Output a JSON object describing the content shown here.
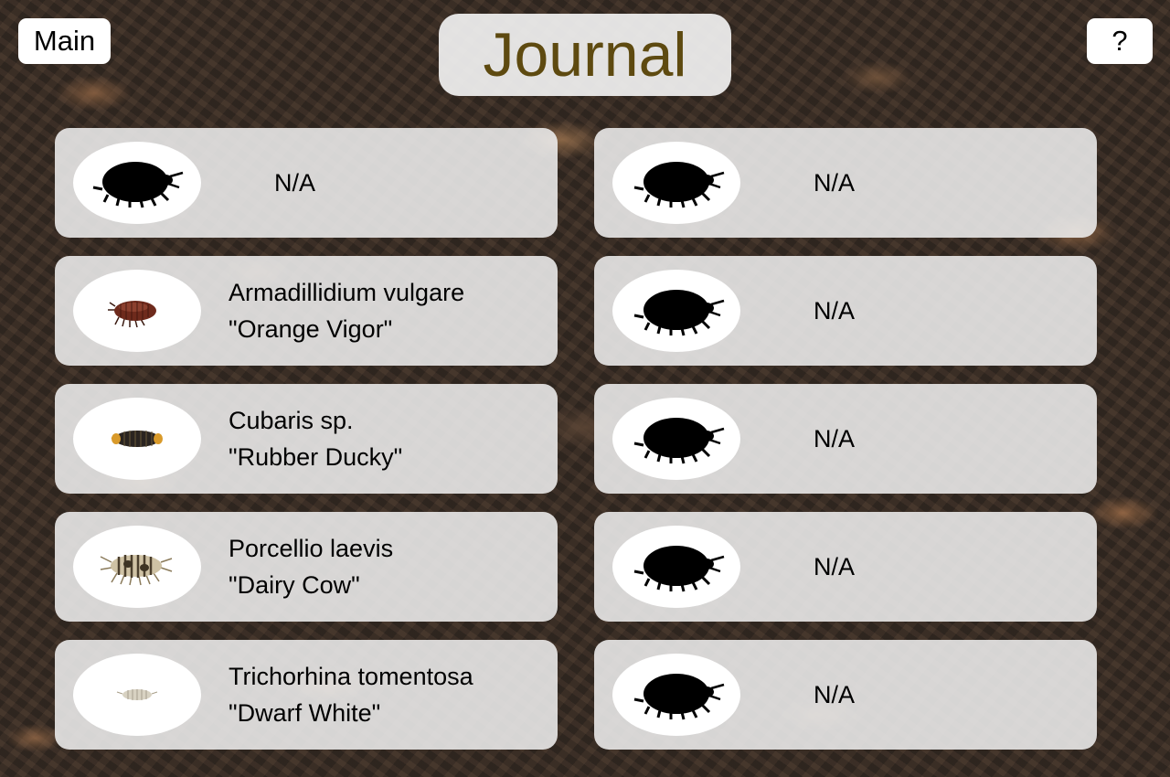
{
  "nav": {
    "main_label": "Main",
    "help_label": "?"
  },
  "header": {
    "title": "Journal",
    "title_color": "#5e4a10"
  },
  "entries": [
    {
      "column": "left",
      "discovered": false,
      "label": "N/A",
      "icon": "silhouette-icon"
    },
    {
      "column": "left",
      "discovered": true,
      "species": "Armadillidium vulgare",
      "morph": "\"Orange Vigor\"",
      "icon": "isopod-orange-vigor-icon",
      "color": "#6e2a1c"
    },
    {
      "column": "left",
      "discovered": true,
      "species": "Cubaris sp.",
      "morph": "\"Rubber Ducky\"",
      "icon": "isopod-rubber-ducky-icon",
      "color": "#2a2420"
    },
    {
      "column": "left",
      "discovered": true,
      "species": "Porcellio laevis",
      "morph": "\"Dairy Cow\"",
      "icon": "isopod-dairy-cow-icon",
      "color": "#b8a888"
    },
    {
      "column": "left",
      "discovered": true,
      "species": "Trichorhina tomentosa",
      "morph": "\"Dwarf White\"",
      "icon": "isopod-dwarf-white-icon",
      "color": "#d8d2c2"
    },
    {
      "column": "right",
      "discovered": false,
      "label": "N/A",
      "icon": "silhouette-icon"
    },
    {
      "column": "right",
      "discovered": false,
      "label": "N/A",
      "icon": "silhouette-icon"
    },
    {
      "column": "right",
      "discovered": false,
      "label": "N/A",
      "icon": "silhouette-icon"
    },
    {
      "column": "right",
      "discovered": false,
      "label": "N/A",
      "icon": "silhouette-icon"
    },
    {
      "column": "right",
      "discovered": false,
      "label": "N/A",
      "icon": "silhouette-icon"
    }
  ]
}
